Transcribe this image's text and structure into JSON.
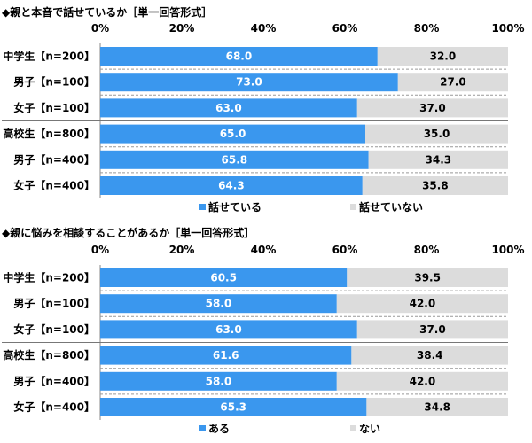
{
  "chart_data": [
    {
      "type": "bar",
      "stacked": true,
      "orientation": "horizontal",
      "title": "◆親と本音で話せているか［単一回答形式］",
      "ticks": [
        "0%",
        "20%",
        "40%",
        "60%",
        "80%",
        "100%"
      ],
      "xlim": [
        0,
        100
      ],
      "categories": [
        "中学生【n=200】",
        "男子【n=100】",
        "女子【n=100】",
        "高校生【n=800】",
        "男子【n=400】",
        "女子【n=400】"
      ],
      "series": [
        {
          "name": "話せている",
          "color": "#3a97ee",
          "values": [
            68.0,
            73.0,
            63.0,
            65.0,
            65.8,
            64.3
          ],
          "labels": [
            "68.0",
            "73.0",
            "63.0",
            "65.0",
            "65.8",
            "64.3"
          ]
        },
        {
          "name": "話せていない",
          "color": "#dcdcdc",
          "values": [
            32.0,
            27.0,
            37.0,
            35.0,
            34.3,
            35.8
          ],
          "labels": [
            "32.0",
            "27.0",
            "37.0",
            "35.0",
            "34.3",
            "35.8"
          ]
        }
      ],
      "legend_position": "bottom"
    },
    {
      "type": "bar",
      "stacked": true,
      "orientation": "horizontal",
      "title": "◆親に悩みを相談することがあるか［単一回答形式］",
      "ticks": [
        "0%",
        "20%",
        "40%",
        "60%",
        "80%",
        "100%"
      ],
      "xlim": [
        0,
        100
      ],
      "categories": [
        "中学生【n=200】",
        "男子【n=100】",
        "女子【n=100】",
        "高校生【n=800】",
        "男子【n=400】",
        "女子【n=400】"
      ],
      "series": [
        {
          "name": "ある",
          "color": "#3a97ee",
          "values": [
            60.5,
            58.0,
            63.0,
            61.6,
            58.0,
            65.3
          ],
          "labels": [
            "60.5",
            "58.0",
            "63.0",
            "61.6",
            "58.0",
            "65.3"
          ]
        },
        {
          "name": "ない",
          "color": "#dcdcdc",
          "values": [
            39.5,
            42.0,
            37.0,
            38.4,
            42.0,
            34.8
          ],
          "labels": [
            "39.5",
            "42.0",
            "37.0",
            "38.4",
            "42.0",
            "34.8"
          ]
        }
      ],
      "legend_position": "bottom"
    }
  ]
}
